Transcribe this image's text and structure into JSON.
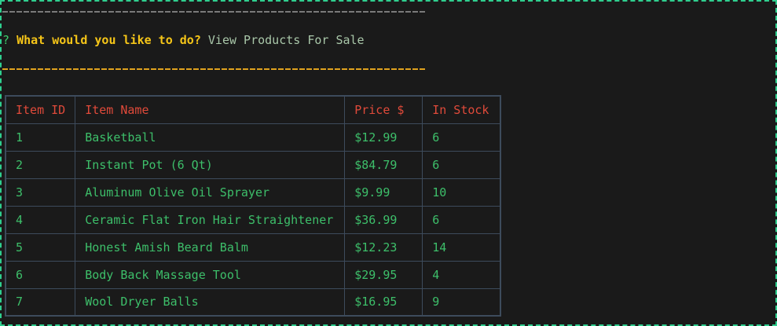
{
  "prompt": {
    "marker": "?",
    "question": "What would you like to do?",
    "answer": "View Products For Sale"
  },
  "colors": {
    "frame": "#2fcf8f",
    "rule_top": "#7a7a7a",
    "rule_bottom": "#e0a21e",
    "question": "#f5c518",
    "header": "#e04a3a",
    "cell": "#3dbf6a",
    "table_border": "#3d4b5c"
  },
  "table": {
    "headers": {
      "id": "Item ID",
      "name": "Item Name",
      "price": "Price $",
      "stock": "In Stock"
    },
    "rows": [
      {
        "id": "1",
        "name": "Basketball",
        "price": "$12.99",
        "stock": "6"
      },
      {
        "id": "2",
        "name": "Instant Pot (6 Qt)",
        "price": "$84.79",
        "stock": "6"
      },
      {
        "id": "3",
        "name": "Aluminum Olive Oil Sprayer",
        "price": "$9.99",
        "stock": "10"
      },
      {
        "id": "4",
        "name": "Ceramic Flat Iron Hair Straightener",
        "price": "$36.99",
        "stock": "6"
      },
      {
        "id": "5",
        "name": "Honest Amish Beard Balm",
        "price": "$12.23",
        "stock": "14"
      },
      {
        "id": "6",
        "name": "Body Back Massage Tool",
        "price": "$29.95",
        "stock": "4"
      },
      {
        "id": "7",
        "name": "Wool Dryer Balls",
        "price": "$16.95",
        "stock": "9"
      }
    ]
  }
}
